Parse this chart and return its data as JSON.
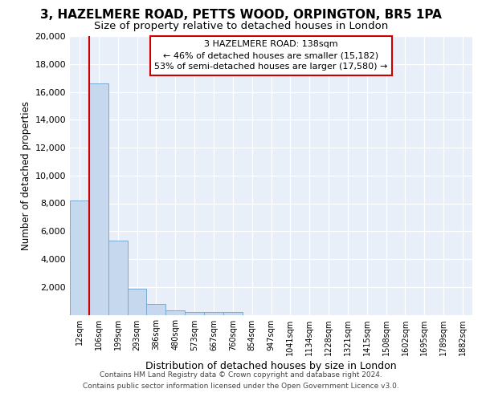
{
  "title": "3, HAZELMERE ROAD, PETTS WOOD, ORPINGTON, BR5 1PA",
  "subtitle": "Size of property relative to detached houses in London",
  "xlabel": "Distribution of detached houses by size in London",
  "ylabel": "Number of detached properties",
  "bin_labels": [
    "12sqm",
    "106sqm",
    "199sqm",
    "293sqm",
    "386sqm",
    "480sqm",
    "573sqm",
    "667sqm",
    "760sqm",
    "854sqm",
    "947sqm",
    "1041sqm",
    "1134sqm",
    "1228sqm",
    "1321sqm",
    "1415sqm",
    "1508sqm",
    "1602sqm",
    "1695sqm",
    "1789sqm",
    "1882sqm"
  ],
  "bar_heights": [
    8200,
    16600,
    5300,
    1850,
    780,
    310,
    230,
    200,
    175,
    0,
    0,
    0,
    0,
    0,
    0,
    0,
    0,
    0,
    0,
    0,
    0
  ],
  "bar_color": "#c5d8ee",
  "bar_edge_color": "#7aaad0",
  "annotation_text": "3 HAZELMERE ROAD: 138sqm\n← 46% of detached houses are smaller (15,182)\n53% of semi-detached houses are larger (17,580) →",
  "annotation_box_color": "#ffffff",
  "annotation_box_edge": "#cc0000",
  "red_line_color": "#cc0000",
  "footer_line1": "Contains HM Land Registry data © Crown copyright and database right 2024.",
  "footer_line2": "Contains public sector information licensed under the Open Government Licence v3.0.",
  "plot_bg_color": "#e8eff8",
  "ylim": [
    0,
    20000
  ],
  "yticks": [
    0,
    2000,
    4000,
    6000,
    8000,
    10000,
    12000,
    14000,
    16000,
    18000,
    20000
  ],
  "title_fontsize": 11,
  "subtitle_fontsize": 9.5
}
